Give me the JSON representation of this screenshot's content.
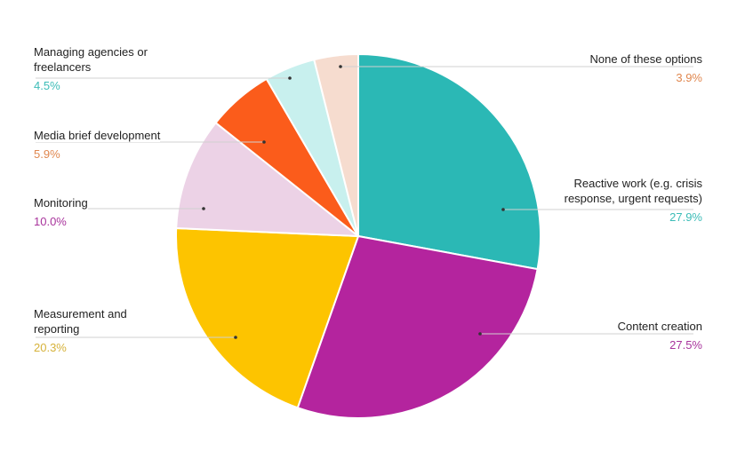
{
  "chart_data": {
    "type": "pie",
    "categories": [
      "Reactive work (e.g. crisis response, urgent requests)",
      "Content creation",
      "Measurement and reporting",
      "Monitoring",
      "Media brief development",
      "Managing agencies or freelancers",
      "None of these options"
    ],
    "values": [
      27.9,
      27.5,
      20.3,
      10.0,
      5.9,
      4.5,
      3.9
    ],
    "value_labels": [
      "27.9%",
      "27.5%",
      "20.3%",
      "10.0%",
      "5.9%",
      "4.5%",
      "3.9%"
    ],
    "colors": [
      "#2bb8b5",
      "#b4249e",
      "#fdc400",
      "#ecd2e6",
      "#fb5c1b",
      "#c8f0ee",
      "#f6dccf"
    ],
    "value_label_colors": [
      "#3cbcb7",
      "#a8339c",
      "#d6b23a",
      "#a8339c",
      "#e0874f",
      "#3cbcb7",
      "#e0874f"
    ]
  }
}
